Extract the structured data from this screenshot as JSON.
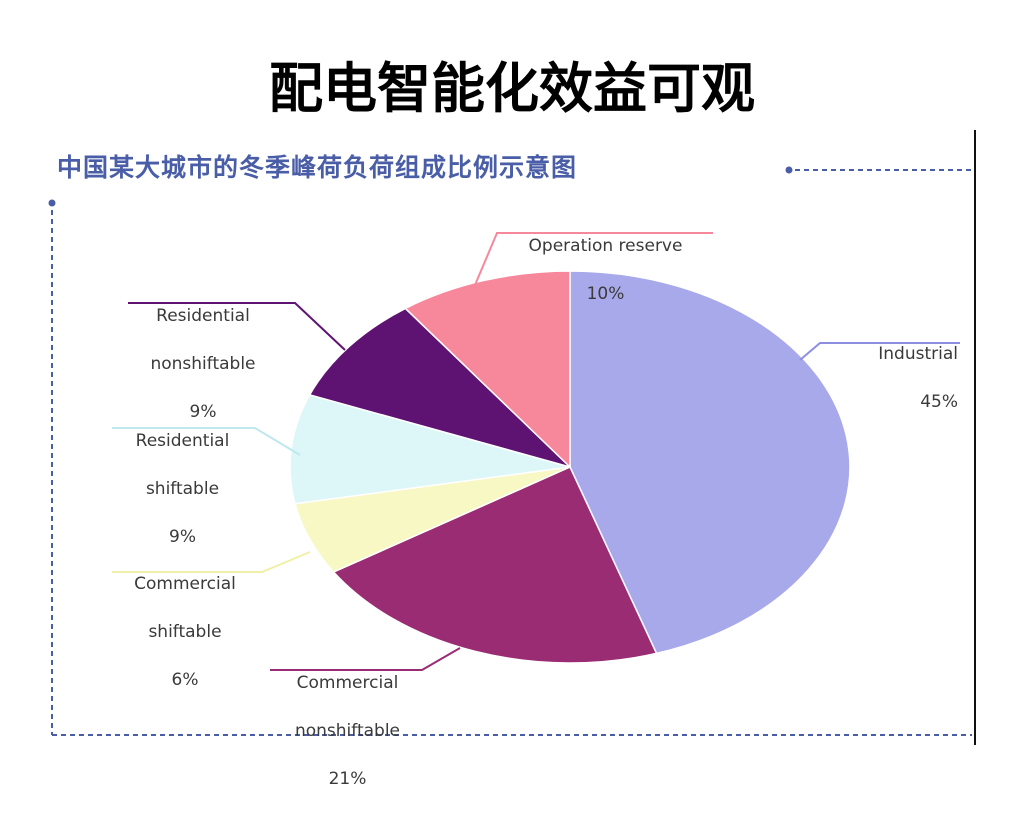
{
  "slide": {
    "title": "配电智能化效益可观"
  },
  "chart_data": {
    "type": "pie",
    "title": "中国某大城市的冬季峰荷负荷组成比例示意图",
    "slices": [
      {
        "name": "Industrial",
        "percent_label": "45%",
        "value": 45,
        "color": "#a8a9ea"
      },
      {
        "name": "Commercial nonshiftable",
        "percent_label": "21%",
        "value": 21,
        "color": "#9a2c73"
      },
      {
        "name": "Commercial shiftable",
        "percent_label": "6%",
        "value": 6,
        "color": "#f7f8c4"
      },
      {
        "name": "Residential shiftable",
        "percent_label": "9%",
        "value": 9,
        "color": "#ddf6f8"
      },
      {
        "name": "Residential nonshiftable",
        "percent_label": "9%",
        "value": 9,
        "color": "#5e1373"
      },
      {
        "name": "Operation reserve",
        "percent_label": "10%",
        "value": 10,
        "color": "#f7889c"
      }
    ]
  },
  "labels": {
    "industrial": {
      "line1": "Industrial",
      "line2": "45%"
    },
    "commercial_nonshiftable": {
      "line1": "Commercial",
      "line2": "nonshiftable",
      "line3": "21%"
    },
    "commercial_shiftable": {
      "line1": "Commercial",
      "line2": "shiftable",
      "line3": "6%"
    },
    "residential_shiftable": {
      "line1": "Residential",
      "line2": "shiftable",
      "line3": "9%"
    },
    "residential_nonshiftable": {
      "line1": "Residential",
      "line2": "nonshiftable",
      "line3": "9%"
    },
    "operation_reserve": {
      "line1": "Operation reserve",
      "line2": "10%"
    }
  }
}
